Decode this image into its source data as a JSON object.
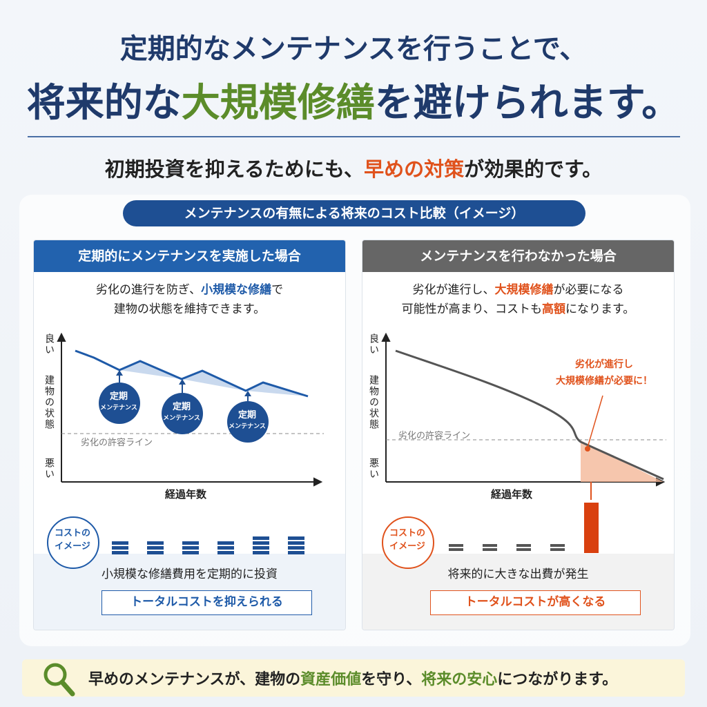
{
  "header": {
    "line1": "定期的なメンテナンスを行うことで、",
    "line2": [
      "将来的な",
      "大規模修繕",
      "を避けられます。"
    ],
    "subtitle": [
      "初期投資を抑えるためにも、",
      "早めの対策",
      "が効果的です。"
    ]
  },
  "banner": "メンテナンスの有無による将来のコスト比較（イメージ）",
  "left": {
    "heading": "定期的にメンテナンスを実施した場合",
    "desc1": [
      "劣化の進行を防ぎ、",
      "小規模な修繕",
      "で"
    ],
    "desc2": "建物の状態を維持できます。",
    "axis_top": "良い",
    "axis_mid": "建物の状態",
    "axis_bottom": "悪い",
    "x_label": "経過年数",
    "threshold": "劣化の許容ライン",
    "bubbles": [
      [
        "定期",
        "メンテナンス"
      ],
      [
        "定期",
        "メンテナンス"
      ],
      [
        "定期",
        "メンテナンス"
      ]
    ],
    "badge": [
      "コストの",
      "イメージ"
    ],
    "caption": "小規模な修繕費用を定期的に投資",
    "result": "トータルコストを抑えられる"
  },
  "right": {
    "heading": "メンテナンスを行わなかった場合",
    "desc1": [
      "劣化が進行し、",
      "大規模修繕",
      "が必要になる"
    ],
    "desc2": [
      "可能性が高まり、コストも",
      "高額",
      "になります。"
    ],
    "axis_top": "良い",
    "axis_mid": "建物の状態",
    "axis_bottom": "悪い",
    "x_label": "経過年数",
    "threshold": "劣化の許容ライン",
    "callout": [
      "劣化が進行し",
      "大規模修繕が必要に！"
    ],
    "badge": [
      "コストの",
      "イメージ"
    ],
    "caption": "将来的に大きな出費が発生",
    "result": "トータルコストが高くなる"
  },
  "footer": [
    "早めのメンテナンスが、建物の",
    "資産価値",
    "を守り、",
    "将来の安心",
    "につながります。"
  ]
}
